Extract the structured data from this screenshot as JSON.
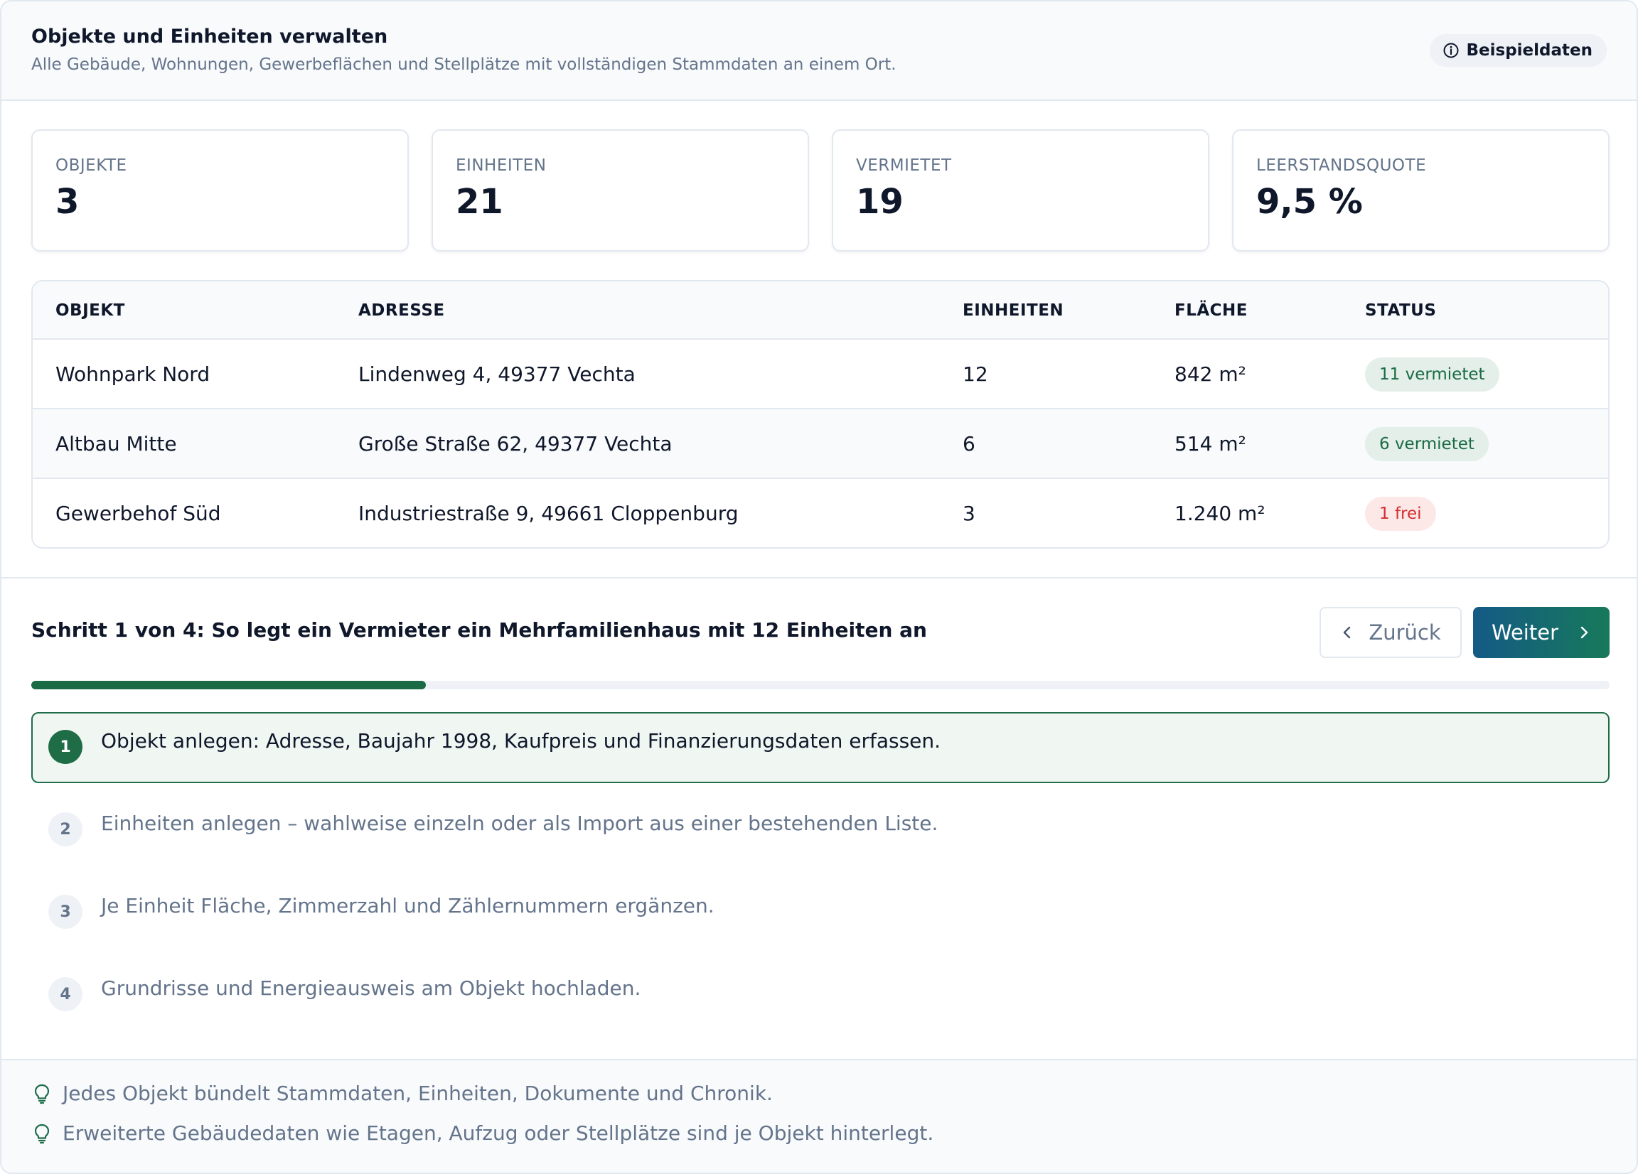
{
  "header": {
    "title": "Objekte und Einheiten verwalten",
    "subtitle": "Alle Gebäude, Wohnungen, Gewerbeflächen und Stellplätze mit vollständigen Stammdaten an einem Ort.",
    "badge": "Beispieldaten",
    "badge_icon": "info-icon"
  },
  "stats": [
    {
      "label": "OBJEKTE",
      "value": "3"
    },
    {
      "label": "EINHEITEN",
      "value": "21"
    },
    {
      "label": "VERMIETET",
      "value": "19"
    },
    {
      "label": "LEERSTANDSQUOTE",
      "value": "9,5 %"
    }
  ],
  "table": {
    "columns": [
      "OBJEKT",
      "ADRESSE",
      "EINHEITEN",
      "FLÄCHE",
      "STATUS"
    ],
    "rows": [
      {
        "objekt": "Wohnpark Nord",
        "adresse": "Lindenweg 4, 49377 Vechta",
        "einheiten": "12",
        "flaeche": "842 m²",
        "status": "11 vermietet",
        "status_type": "ok"
      },
      {
        "objekt": "Altbau Mitte",
        "adresse": "Große Straße 62, 49377 Vechta",
        "einheiten": "6",
        "flaeche": "514 m²",
        "status": "6 vermietet",
        "status_type": "ok"
      },
      {
        "objekt": "Gewerbehof Süd",
        "adresse": "Industriestraße 9, 49661 Cloppenburg",
        "einheiten": "3",
        "flaeche": "1.240 m²",
        "status": "1 frei",
        "status_type": "free"
      }
    ]
  },
  "steps": {
    "title": "Schritt 1 von 4: So legt ein Vermieter ein Mehrfamilienhaus mit 12 Einheiten an",
    "back_label": "Zurück",
    "next_label": "Weiter",
    "progress_fraction": 0.25,
    "items": [
      {
        "num": "1",
        "text": "Objekt anlegen: Adresse, Baujahr 1998, Kaufpreis und Finanzierungsdaten erfassen.",
        "active": true
      },
      {
        "num": "2",
        "text": "Einheiten anlegen – wahlweise einzeln oder als Import aus einer bestehenden Liste.",
        "active": false
      },
      {
        "num": "3",
        "text": "Je Einheit Fläche, Zimmerzahl und Zählernummern ergänzen.",
        "active": false
      },
      {
        "num": "4",
        "text": "Grundrisse und Energieausweis am Objekt hochladen.",
        "active": false
      }
    ]
  },
  "tips": [
    {
      "icon": "lightbulb-icon",
      "text": "Jedes Objekt bündelt Stammdaten, Einheiten, Dokumente und Chronik."
    },
    {
      "icon": "lightbulb-icon",
      "text": "Erweiterte Gebäudedaten wie Etagen, Aufzug oder Stellplätze sind je Objekt hinterlegt."
    }
  ],
  "colors": {
    "accent_green": "#1e6d47",
    "accent_blue": "#145a86",
    "status_ok_bg": "#e3efe8",
    "status_ok_text": "#1a6b45",
    "status_free_bg": "#fde8e8",
    "status_free_text": "#d12f2f"
  }
}
